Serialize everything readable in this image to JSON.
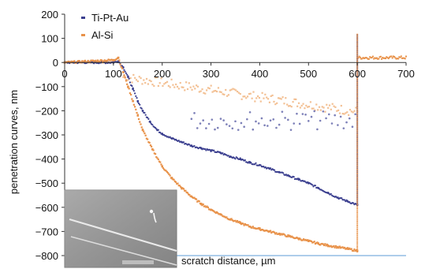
{
  "chart_data": {
    "type": "scatter",
    "xlabel": "scratch distance, µm",
    "ylabel": "penetration curves, nm",
    "xlim": [
      0,
      700
    ],
    "ylim": [
      -800,
      200
    ],
    "x_ticks": [
      "0",
      "100",
      "200",
      "300",
      "400",
      "500",
      "600",
      "700"
    ],
    "y_ticks": [
      "200",
      "100",
      "0",
      "−100",
      "−200",
      "−300",
      "−400",
      "−500",
      "−600",
      "−700",
      "−800"
    ],
    "x_tick_values": [
      0,
      100,
      200,
      300,
      400,
      500,
      600,
      700
    ],
    "y_tick_values": [
      200,
      100,
      0,
      -100,
      -200,
      -300,
      -400,
      -500,
      -600,
      -700,
      -800
    ],
    "grid": false,
    "legend_position": "top-left",
    "inset": "SEM micrograph of scratch track (bottom-left)",
    "series": [
      {
        "name": "Ti-Pt-Au",
        "color": "#3b3f8f",
        "marker": "dot",
        "points": [
          [
            0,
            0
          ],
          [
            100,
            0
          ],
          [
            110,
            5
          ],
          [
            120,
            -20
          ],
          [
            130,
            -60
          ],
          [
            140,
            -110
          ],
          [
            150,
            -160
          ],
          [
            160,
            -200
          ],
          [
            175,
            -245
          ],
          [
            190,
            -280
          ],
          [
            200,
            -295
          ],
          [
            220,
            -315
          ],
          [
            240,
            -330
          ],
          [
            260,
            -345
          ],
          [
            280,
            -355
          ],
          [
            300,
            -365
          ],
          [
            320,
            -375
          ],
          [
            340,
            -390
          ],
          [
            360,
            -400
          ],
          [
            380,
            -415
          ],
          [
            400,
            -425
          ],
          [
            420,
            -440
          ],
          [
            440,
            -455
          ],
          [
            460,
            -470
          ],
          [
            480,
            -485
          ],
          [
            500,
            -500
          ],
          [
            520,
            -520
          ],
          [
            540,
            -540
          ],
          [
            560,
            -560
          ],
          [
            580,
            -575
          ],
          [
            600,
            -590
          ]
        ]
      },
      {
        "name": "Al-Si",
        "color": "#e8924a",
        "marker": "square",
        "points": [
          [
            0,
            0
          ],
          [
            100,
            10
          ],
          [
            110,
            20
          ],
          [
            120,
            -40
          ],
          [
            130,
            -100
          ],
          [
            140,
            -160
          ],
          [
            150,
            -220
          ],
          [
            160,
            -280
          ],
          [
            180,
            -360
          ],
          [
            200,
            -430
          ],
          [
            220,
            -480
          ],
          [
            240,
            -520
          ],
          [
            260,
            -555
          ],
          [
            280,
            -585
          ],
          [
            300,
            -610
          ],
          [
            320,
            -630
          ],
          [
            340,
            -650
          ],
          [
            360,
            -665
          ],
          [
            380,
            -680
          ],
          [
            400,
            -690
          ],
          [
            420,
            -700
          ],
          [
            440,
            -710
          ],
          [
            460,
            -720
          ],
          [
            480,
            -730
          ],
          [
            500,
            -740
          ],
          [
            520,
            -750
          ],
          [
            540,
            -758
          ],
          [
            560,
            -765
          ],
          [
            580,
            -772
          ],
          [
            600,
            -780
          ]
        ]
      }
    ]
  }
}
